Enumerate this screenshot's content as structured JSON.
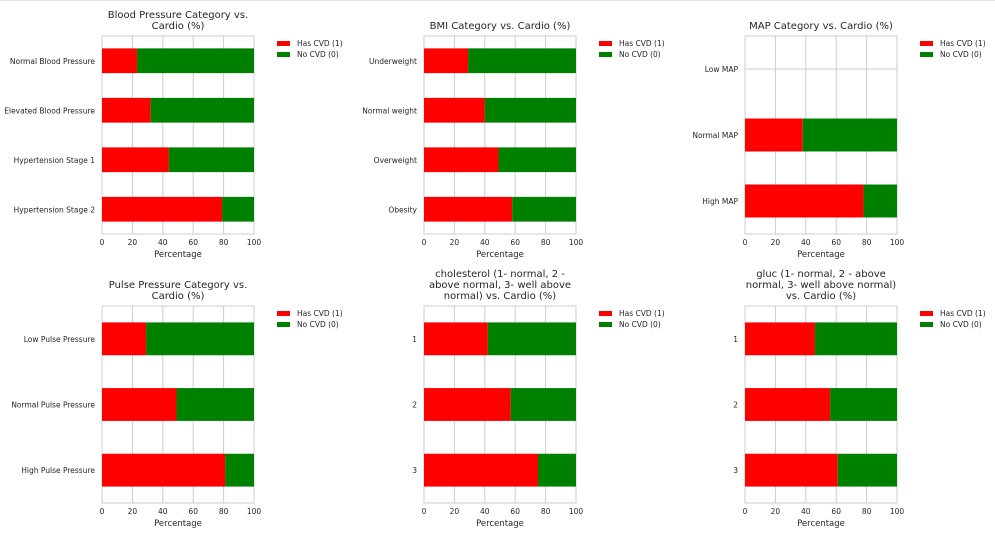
{
  "chart_data": [
    {
      "type": "bar",
      "orientation": "horizontal",
      "stacked": true,
      "title": [
        "Blood Pressure Category vs.",
        "Cardio (%)"
      ],
      "categories": [
        "Normal Blood Pressure",
        "Elevated Blood Pressure",
        "Hypertension Stage 1",
        "Hypertension Stage 2"
      ],
      "series": [
        {
          "name": "Has CVD (1)",
          "color": "#ff0000",
          "values": [
            23,
            32,
            44,
            79
          ]
        },
        {
          "name": "No CVD (0)",
          "color": "#008000",
          "values": [
            77,
            68,
            56,
            21
          ]
        }
      ],
      "xlabel": "Percentage",
      "xlim": [
        0,
        100
      ],
      "xticks": [
        "0",
        "20",
        "40",
        "60",
        "80",
        "100"
      ],
      "grid": true,
      "legend": "top-right-outside"
    },
    {
      "type": "bar",
      "orientation": "horizontal",
      "stacked": true,
      "title": [
        "BMI Category vs. Cardio (%)"
      ],
      "categories": [
        "Underweight",
        "Normal weight",
        "Overweight",
        "Obesity"
      ],
      "series": [
        {
          "name": "Has CVD (1)",
          "color": "#ff0000",
          "values": [
            29,
            40,
            49,
            58
          ]
        },
        {
          "name": "No CVD (0)",
          "color": "#008000",
          "values": [
            71,
            60,
            51,
            42
          ]
        }
      ],
      "xlabel": "Percentage",
      "xlim": [
        0,
        100
      ],
      "xticks": [
        "0",
        "20",
        "40",
        "60",
        "80",
        "100"
      ],
      "grid": true,
      "legend": "top-right-outside"
    },
    {
      "type": "bar",
      "orientation": "horizontal",
      "stacked": true,
      "title": [
        "MAP Category vs. Cardio (%)"
      ],
      "categories": [
        "Low MAP",
        "Normal MAP",
        "High MAP"
      ],
      "series": [
        {
          "name": "Has CVD (1)",
          "color": "#ff0000",
          "values": [
            0,
            38,
            78
          ]
        },
        {
          "name": "No CVD (0)",
          "color": "#008000",
          "values": [
            0,
            62,
            22
          ]
        }
      ],
      "xlabel": "Percentage",
      "xlim": [
        0,
        100
      ],
      "xticks": [
        "0",
        "20",
        "40",
        "60",
        "80",
        "100"
      ],
      "grid": true,
      "legend": "top-right-outside"
    },
    {
      "type": "bar",
      "orientation": "horizontal",
      "stacked": true,
      "title": [
        "Pulse Pressure Category vs.",
        "Cardio (%)"
      ],
      "categories": [
        "Low Pulse Pressure",
        "Normal Pulse Pressure",
        "High Pulse Pressure"
      ],
      "series": [
        {
          "name": "Has CVD (1)",
          "color": "#ff0000",
          "values": [
            29,
            49,
            81
          ]
        },
        {
          "name": "No CVD (0)",
          "color": "#008000",
          "values": [
            71,
            51,
            19
          ]
        }
      ],
      "xlabel": "Percentage",
      "xlim": [
        0,
        100
      ],
      "xticks": [
        "0",
        "20",
        "40",
        "60",
        "80",
        "100"
      ],
      "grid": true,
      "legend": "top-right-outside"
    },
    {
      "type": "bar",
      "orientation": "horizontal",
      "stacked": true,
      "title": [
        "cholesterol (1- normal, 2 -",
        "above normal, 3- well above",
        "normal) vs. Cardio (%)"
      ],
      "categories": [
        "1",
        "2",
        "3"
      ],
      "series": [
        {
          "name": "Has CVD (1)",
          "color": "#ff0000",
          "values": [
            42,
            57,
            75
          ]
        },
        {
          "name": "No CVD (0)",
          "color": "#008000",
          "values": [
            58,
            43,
            25
          ]
        }
      ],
      "xlabel": "Percentage",
      "xlim": [
        0,
        100
      ],
      "xticks": [
        "0",
        "20",
        "40",
        "60",
        "80",
        "100"
      ],
      "grid": true,
      "legend": "top-right-outside"
    },
    {
      "type": "bar",
      "orientation": "horizontal",
      "stacked": true,
      "title": [
        "gluc (1- normal, 2 - above",
        "normal, 3- well above normal)",
        "vs. Cardio (%)"
      ],
      "categories": [
        "1",
        "2",
        "3"
      ],
      "series": [
        {
          "name": "Has CVD (1)",
          "color": "#ff0000",
          "values": [
            46,
            56,
            61
          ]
        },
        {
          "name": "No CVD (0)",
          "color": "#008000",
          "values": [
            54,
            44,
            39
          ]
        }
      ],
      "xlabel": "Percentage",
      "xlim": [
        0,
        100
      ],
      "xticks": [
        "0",
        "20",
        "40",
        "60",
        "80",
        "100"
      ],
      "grid": true,
      "legend": "top-right-outside"
    }
  ]
}
